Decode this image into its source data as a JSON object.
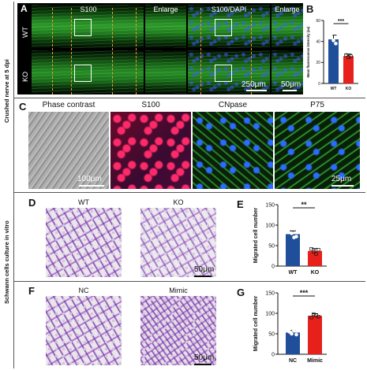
{
  "side_labels": {
    "top": "Crushed nerve at 5 dpi",
    "bottom": "Schwann cells culture in vitro"
  },
  "panel_letters": [
    "A",
    "B",
    "C",
    "D",
    "E",
    "F",
    "G"
  ],
  "panel_a": {
    "col_headers": [
      "S100",
      "Enlarge",
      "S100/DAPI",
      "Enlarge"
    ],
    "row_labels": [
      "WT",
      "KO"
    ],
    "scalebars": [
      "250μm",
      "50μm"
    ]
  },
  "panel_c": {
    "col_headers": [
      "Phase contrast",
      "S100",
      "CNpase",
      "P75"
    ],
    "scalebars": [
      "100μm",
      "25μm"
    ]
  },
  "panel_d": {
    "headers": [
      "WT",
      "KO"
    ],
    "scalebar": "50μm"
  },
  "panel_f": {
    "headers": [
      "NC",
      "Mimic"
    ],
    "scalebar": "50μm"
  },
  "colors": {
    "wt_blue": "#1f4e9a",
    "ko_red": "#e8201c",
    "divider": "#555555"
  },
  "chart_data": [
    {
      "panel": "B",
      "type": "bar",
      "categories": [
        "WT",
        "KO"
      ],
      "values": [
        42,
        26
      ],
      "errors": [
        4,
        2
      ],
      "points": [
        [
          47,
          41,
          38
        ],
        [
          27,
          25,
          26
        ]
      ],
      "ylabel": "Mean fluorescence intensity (au)",
      "ylim": [
        0,
        60
      ],
      "yticks": [
        0,
        20,
        40,
        60
      ],
      "significance": "***",
      "colors": [
        "#1f4e9a",
        "#e8201c"
      ]
    },
    {
      "panel": "E",
      "type": "bar",
      "categories": [
        "WT",
        "KO"
      ],
      "values": [
        78,
        37
      ],
      "errors": [
        8,
        6
      ],
      "points": [
        [
          92,
          80,
          70,
          72
        ],
        [
          42,
          35,
          30,
          40
        ]
      ],
      "ylabel": "Migrated cell number",
      "ylim": [
        0,
        150
      ],
      "yticks": [
        0,
        50,
        100,
        150
      ],
      "significance": "**",
      "colors": [
        "#1f4e9a",
        "#e8201c"
      ]
    },
    {
      "panel": "G",
      "type": "bar",
      "categories": [
        "NC",
        "Mimic"
      ],
      "values": [
        53,
        94
      ],
      "errors": [
        5,
        5
      ],
      "points": [
        [
          55,
          50,
          58,
          48
        ],
        [
          90,
          98,
          95,
          92
        ]
      ],
      "ylabel": "Migrated cell number",
      "ylim": [
        0,
        150
      ],
      "yticks": [
        0,
        50,
        100,
        150
      ],
      "significance": "***",
      "colors": [
        "#1f4e9a",
        "#e8201c"
      ]
    }
  ]
}
